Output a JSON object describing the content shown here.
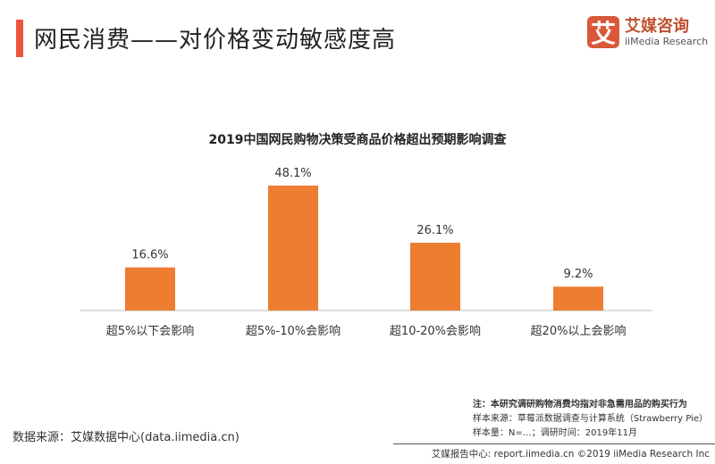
{
  "header": {
    "title": "网民消费——对价格变动敏感度高"
  },
  "logo": {
    "mark": "艾",
    "cn": "艾媒咨询",
    "en": "iiMedia Research"
  },
  "chart_data": {
    "type": "bar",
    "title": "2019中国网民购物决策受商品价格超出预期影响调查",
    "categories": [
      "超5%以下会影响",
      "超5%-10%会影响",
      "超10-20%会影响",
      "超20%以上会影响"
    ],
    "values": [
      16.6,
      48.1,
      26.1,
      9.2
    ],
    "data_labels": [
      "16.6%",
      "48.1%",
      "26.1%",
      "9.2%"
    ],
    "unit": "%",
    "color": "#ed7d31",
    "grid": false,
    "ylim": [
      0,
      55
    ]
  },
  "source": "数据来源：艾媒数据中心(data.iimedia.cn)",
  "notes": [
    "注：本研究调研购物消费均指对非急需用品的购买行为",
    "样本来源：草莓派数据调查与计算系统（Strawberry Pie）",
    "样本量：N=…；调研时间：2019年11月"
  ],
  "footer": "艾媒报告中心: report.iimedia.cn  ©2019  iiMedia Research  Inc"
}
